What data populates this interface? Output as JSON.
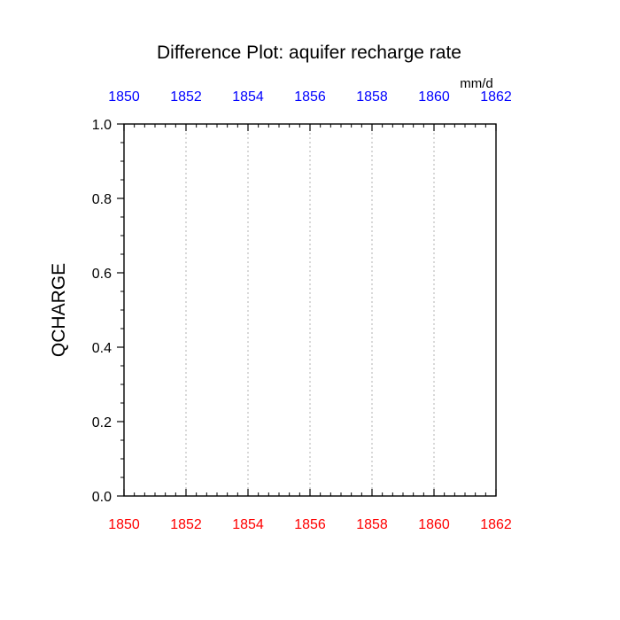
{
  "chart_data": {
    "type": "line",
    "title": "Difference Plot: aquifer recharge rate",
    "units": "mm/d",
    "ylabel": "QCHARGE",
    "xlabel": "",
    "xlim": [
      1850,
      1862
    ],
    "ylim": [
      0.0,
      1.0
    ],
    "x_ticks": [
      "1850",
      "1852",
      "1854",
      "1856",
      "1858",
      "1860",
      "1862"
    ],
    "y_ticks": [
      "0.0",
      "0.2",
      "0.4",
      "0.6",
      "0.8",
      "1.0"
    ],
    "top_axis_color": "#0000ff",
    "bottom_axis_color": "#ff0000",
    "vertical_grid": "dotted",
    "series": []
  }
}
